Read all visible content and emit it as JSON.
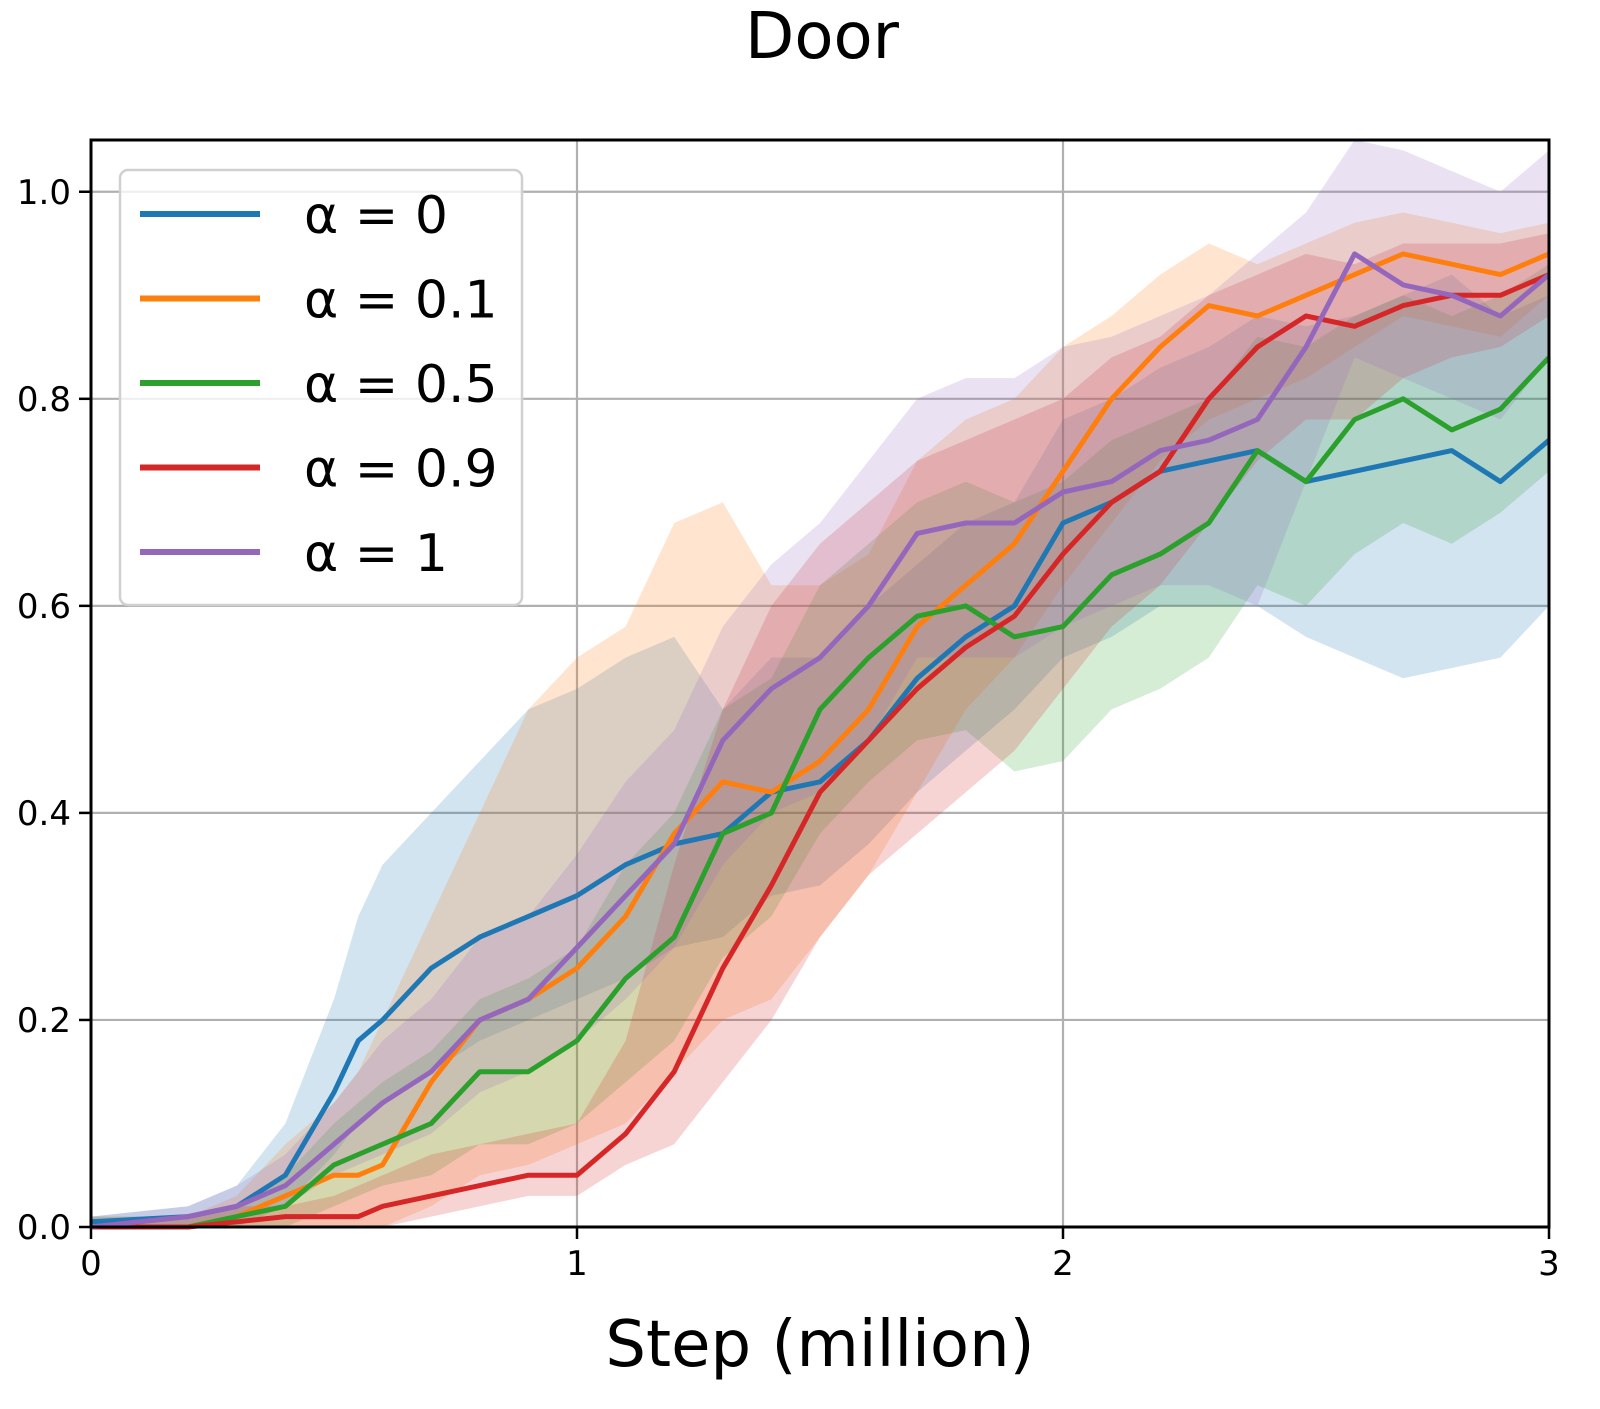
{
  "chart_data": {
    "type": "line",
    "title": "Door",
    "xlabel": "Step (million)",
    "ylabel": "",
    "xlim": [
      0,
      3
    ],
    "ylim": [
      0,
      1.05
    ],
    "xticks": [
      0,
      1,
      2,
      3
    ],
    "xtick_labels": [
      "0",
      "1",
      "2",
      "3"
    ],
    "yticks": [
      0.0,
      0.2,
      0.4,
      0.6,
      0.8,
      1.0
    ],
    "ytick_labels": [
      "0.0",
      "0.2",
      "0.4",
      "0.6",
      "0.8",
      "1.0"
    ],
    "grid": true,
    "legend_position": "top-left",
    "series": [
      {
        "name": "α = 0",
        "color": "#1f77b4",
        "x": [
          0,
          0.2,
          0.3,
          0.4,
          0.5,
          0.55,
          0.6,
          0.7,
          0.8,
          0.9,
          1.0,
          1.1,
          1.2,
          1.3,
          1.4,
          1.5,
          1.6,
          1.7,
          1.8,
          1.9,
          2.0,
          2.1,
          2.2,
          2.3,
          2.4,
          2.5,
          2.6,
          2.7,
          2.8,
          2.9,
          3.0
        ],
        "values": [
          0.005,
          0.01,
          0.02,
          0.05,
          0.13,
          0.18,
          0.2,
          0.25,
          0.28,
          0.3,
          0.32,
          0.35,
          0.37,
          0.38,
          0.42,
          0.43,
          0.47,
          0.53,
          0.57,
          0.6,
          0.68,
          0.7,
          0.73,
          0.74,
          0.75,
          0.72,
          0.73,
          0.74,
          0.75,
          0.72,
          0.76
        ],
        "lower": [
          0.0,
          0.0,
          0.0,
          0.02,
          0.07,
          0.1,
          0.12,
          0.15,
          0.18,
          0.2,
          0.22,
          0.24,
          0.27,
          0.28,
          0.32,
          0.33,
          0.37,
          0.42,
          0.46,
          0.5,
          0.55,
          0.57,
          0.6,
          0.6,
          0.6,
          0.57,
          0.55,
          0.53,
          0.54,
          0.55,
          0.6
        ],
        "upper": [
          0.01,
          0.02,
          0.04,
          0.1,
          0.22,
          0.3,
          0.35,
          0.4,
          0.45,
          0.5,
          0.52,
          0.55,
          0.57,
          0.5,
          0.55,
          0.55,
          0.6,
          0.64,
          0.68,
          0.7,
          0.78,
          0.8,
          0.83,
          0.85,
          0.88,
          0.87,
          0.88,
          0.9,
          0.92,
          0.88,
          0.9
        ]
      },
      {
        "name": "α = 0.1",
        "color": "#ff7f0e",
        "x": [
          0,
          0.2,
          0.3,
          0.4,
          0.5,
          0.55,
          0.6,
          0.7,
          0.8,
          0.9,
          1.0,
          1.1,
          1.2,
          1.3,
          1.4,
          1.5,
          1.6,
          1.7,
          1.8,
          1.9,
          2.0,
          2.1,
          2.2,
          2.3,
          2.4,
          2.5,
          2.6,
          2.7,
          2.8,
          2.9,
          3.0
        ],
        "values": [
          0.0,
          0.0,
          0.01,
          0.03,
          0.05,
          0.05,
          0.06,
          0.14,
          0.2,
          0.22,
          0.25,
          0.3,
          0.38,
          0.43,
          0.42,
          0.45,
          0.5,
          0.58,
          0.62,
          0.66,
          0.73,
          0.8,
          0.85,
          0.89,
          0.88,
          0.9,
          0.92,
          0.94,
          0.93,
          0.92,
          0.94
        ],
        "lower": [
          0.0,
          0.0,
          0.0,
          0.0,
          0.0,
          0.0,
          0.0,
          0.02,
          0.05,
          0.06,
          0.08,
          0.1,
          0.15,
          0.2,
          0.22,
          0.28,
          0.34,
          0.42,
          0.5,
          0.55,
          0.62,
          0.68,
          0.74,
          0.78,
          0.8,
          0.82,
          0.85,
          0.88,
          0.87,
          0.86,
          0.9
        ],
        "upper": [
          0.01,
          0.01,
          0.03,
          0.08,
          0.12,
          0.15,
          0.2,
          0.3,
          0.4,
          0.5,
          0.55,
          0.58,
          0.68,
          0.7,
          0.62,
          0.62,
          0.65,
          0.74,
          0.78,
          0.8,
          0.85,
          0.88,
          0.92,
          0.95,
          0.93,
          0.95,
          0.97,
          0.98,
          0.97,
          0.96,
          0.97
        ]
      },
      {
        "name": "α = 0.5",
        "color": "#2ca02c",
        "x": [
          0,
          0.2,
          0.3,
          0.4,
          0.5,
          0.55,
          0.6,
          0.7,
          0.8,
          0.9,
          1.0,
          1.1,
          1.2,
          1.3,
          1.4,
          1.5,
          1.6,
          1.7,
          1.8,
          1.9,
          2.0,
          2.1,
          2.2,
          2.3,
          2.4,
          2.5,
          2.6,
          2.7,
          2.8,
          2.9,
          3.0
        ],
        "values": [
          0.0,
          0.0,
          0.01,
          0.02,
          0.06,
          0.07,
          0.08,
          0.1,
          0.15,
          0.15,
          0.18,
          0.24,
          0.28,
          0.38,
          0.4,
          0.5,
          0.55,
          0.59,
          0.6,
          0.57,
          0.58,
          0.63,
          0.65,
          0.68,
          0.75,
          0.72,
          0.78,
          0.8,
          0.77,
          0.79,
          0.84
        ],
        "lower": [
          0.0,
          0.0,
          0.0,
          0.0,
          0.02,
          0.03,
          0.04,
          0.05,
          0.08,
          0.08,
          0.1,
          0.14,
          0.18,
          0.26,
          0.3,
          0.38,
          0.43,
          0.47,
          0.48,
          0.44,
          0.45,
          0.5,
          0.52,
          0.55,
          0.62,
          0.6,
          0.65,
          0.68,
          0.66,
          0.69,
          0.73
        ],
        "upper": [
          0.01,
          0.01,
          0.02,
          0.05,
          0.1,
          0.12,
          0.14,
          0.17,
          0.22,
          0.24,
          0.27,
          0.35,
          0.4,
          0.5,
          0.53,
          0.62,
          0.66,
          0.7,
          0.72,
          0.7,
          0.72,
          0.76,
          0.78,
          0.8,
          0.86,
          0.85,
          0.88,
          0.9,
          0.88,
          0.9,
          0.93
        ]
      },
      {
        "name": "α = 0.9",
        "color": "#d62728",
        "x": [
          0,
          0.2,
          0.3,
          0.4,
          0.5,
          0.55,
          0.6,
          0.7,
          0.8,
          0.9,
          1.0,
          1.1,
          1.2,
          1.3,
          1.4,
          1.5,
          1.6,
          1.7,
          1.8,
          1.9,
          2.0,
          2.1,
          2.2,
          2.3,
          2.4,
          2.5,
          2.6,
          2.7,
          2.8,
          2.9,
          3.0
        ],
        "values": [
          0.0,
          0.0,
          0.005,
          0.01,
          0.01,
          0.01,
          0.02,
          0.03,
          0.04,
          0.05,
          0.05,
          0.09,
          0.15,
          0.25,
          0.33,
          0.42,
          0.47,
          0.52,
          0.56,
          0.59,
          0.65,
          0.7,
          0.73,
          0.8,
          0.85,
          0.88,
          0.87,
          0.89,
          0.9,
          0.9,
          0.92
        ],
        "lower": [
          0.0,
          0.0,
          0.0,
          0.0,
          0.0,
          0.0,
          0.0,
          0.01,
          0.02,
          0.03,
          0.03,
          0.06,
          0.08,
          0.14,
          0.2,
          0.28,
          0.34,
          0.38,
          0.42,
          0.46,
          0.52,
          0.58,
          0.62,
          0.68,
          0.74,
          0.78,
          0.78,
          0.82,
          0.84,
          0.85,
          0.88
        ],
        "upper": [
          0.0,
          0.01,
          0.02,
          0.02,
          0.03,
          0.04,
          0.05,
          0.07,
          0.08,
          0.09,
          0.1,
          0.18,
          0.35,
          0.5,
          0.6,
          0.66,
          0.7,
          0.74,
          0.76,
          0.78,
          0.8,
          0.84,
          0.86,
          0.9,
          0.92,
          0.94,
          0.93,
          0.95,
          0.95,
          0.95,
          0.96
        ]
      },
      {
        "name": "α = 1",
        "color": "#9467bd",
        "x": [
          0,
          0.2,
          0.3,
          0.4,
          0.5,
          0.55,
          0.6,
          0.7,
          0.8,
          0.9,
          1.0,
          1.1,
          1.2,
          1.3,
          1.4,
          1.5,
          1.6,
          1.7,
          1.8,
          1.9,
          2.0,
          2.1,
          2.2,
          2.3,
          2.4,
          2.5,
          2.6,
          2.7,
          2.8,
          2.9,
          3.0
        ],
        "values": [
          0.0,
          0.01,
          0.02,
          0.04,
          0.08,
          0.1,
          0.12,
          0.15,
          0.2,
          0.22,
          0.27,
          0.32,
          0.37,
          0.47,
          0.52,
          0.55,
          0.6,
          0.67,
          0.68,
          0.68,
          0.71,
          0.72,
          0.75,
          0.76,
          0.78,
          0.85,
          0.94,
          0.91,
          0.9,
          0.88,
          0.92
        ],
        "lower": [
          0.0,
          0.0,
          0.01,
          0.02,
          0.05,
          0.06,
          0.07,
          0.09,
          0.13,
          0.15,
          0.18,
          0.22,
          0.27,
          0.35,
          0.4,
          0.42,
          0.47,
          0.55,
          0.55,
          0.55,
          0.58,
          0.6,
          0.62,
          0.62,
          0.6,
          0.72,
          0.84,
          0.82,
          0.8,
          0.78,
          0.84
        ],
        "upper": [
          0.01,
          0.02,
          0.04,
          0.07,
          0.12,
          0.15,
          0.18,
          0.22,
          0.28,
          0.3,
          0.36,
          0.43,
          0.48,
          0.58,
          0.64,
          0.68,
          0.74,
          0.8,
          0.82,
          0.82,
          0.85,
          0.86,
          0.88,
          0.9,
          0.94,
          0.98,
          1.05,
          1.04,
          1.02,
          1.0,
          1.04
        ]
      }
    ]
  }
}
